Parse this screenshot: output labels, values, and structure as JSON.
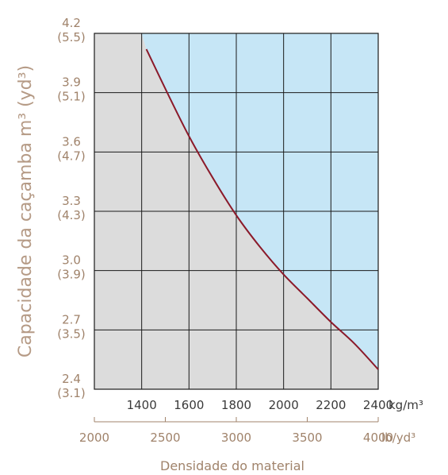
{
  "chart_data": {
    "type": "line",
    "ylabel": "Capacidade da caçamba m³ (yd³)",
    "xlabel": "Densidade do material",
    "x_primary_unit": "kg/m³",
    "x_secondary_unit": "lb/yd³",
    "x_ticks": [
      1400,
      1600,
      1800,
      2000,
      2200,
      2400
    ],
    "x_secondary_ticks": [
      2000,
      2500,
      3000,
      3500,
      4000
    ],
    "xlim": [
      1200,
      2400
    ],
    "y_ticks": [
      {
        "value": 4.2,
        "alt": "(5.5)"
      },
      {
        "value": 3.9,
        "alt": "(5.1)"
      },
      {
        "value": 3.6,
        "alt": "(4.7)"
      },
      {
        "value": 3.3,
        "alt": "(4.3)"
      },
      {
        "value": 3.0,
        "alt": "(3.9)"
      },
      {
        "value": 2.7,
        "alt": "(3.5)"
      },
      {
        "value": 2.4,
        "alt": "(3.1)"
      }
    ],
    "ylim": [
      2.4,
      4.2
    ],
    "grid": true,
    "colors": {
      "curve": "#8b1a2a",
      "above": "#c6e6f6",
      "below": "#dcdcdc",
      "axis_text": "#a0836b"
    },
    "series": [
      {
        "x": [
          1420,
          1500,
          1600,
          1700,
          1800,
          1900,
          2000,
          2100,
          2200,
          2300,
          2400
        ],
        "y": [
          4.12,
          3.92,
          3.68,
          3.47,
          3.28,
          3.12,
          2.98,
          2.86,
          2.74,
          2.63,
          2.5
        ]
      }
    ]
  }
}
